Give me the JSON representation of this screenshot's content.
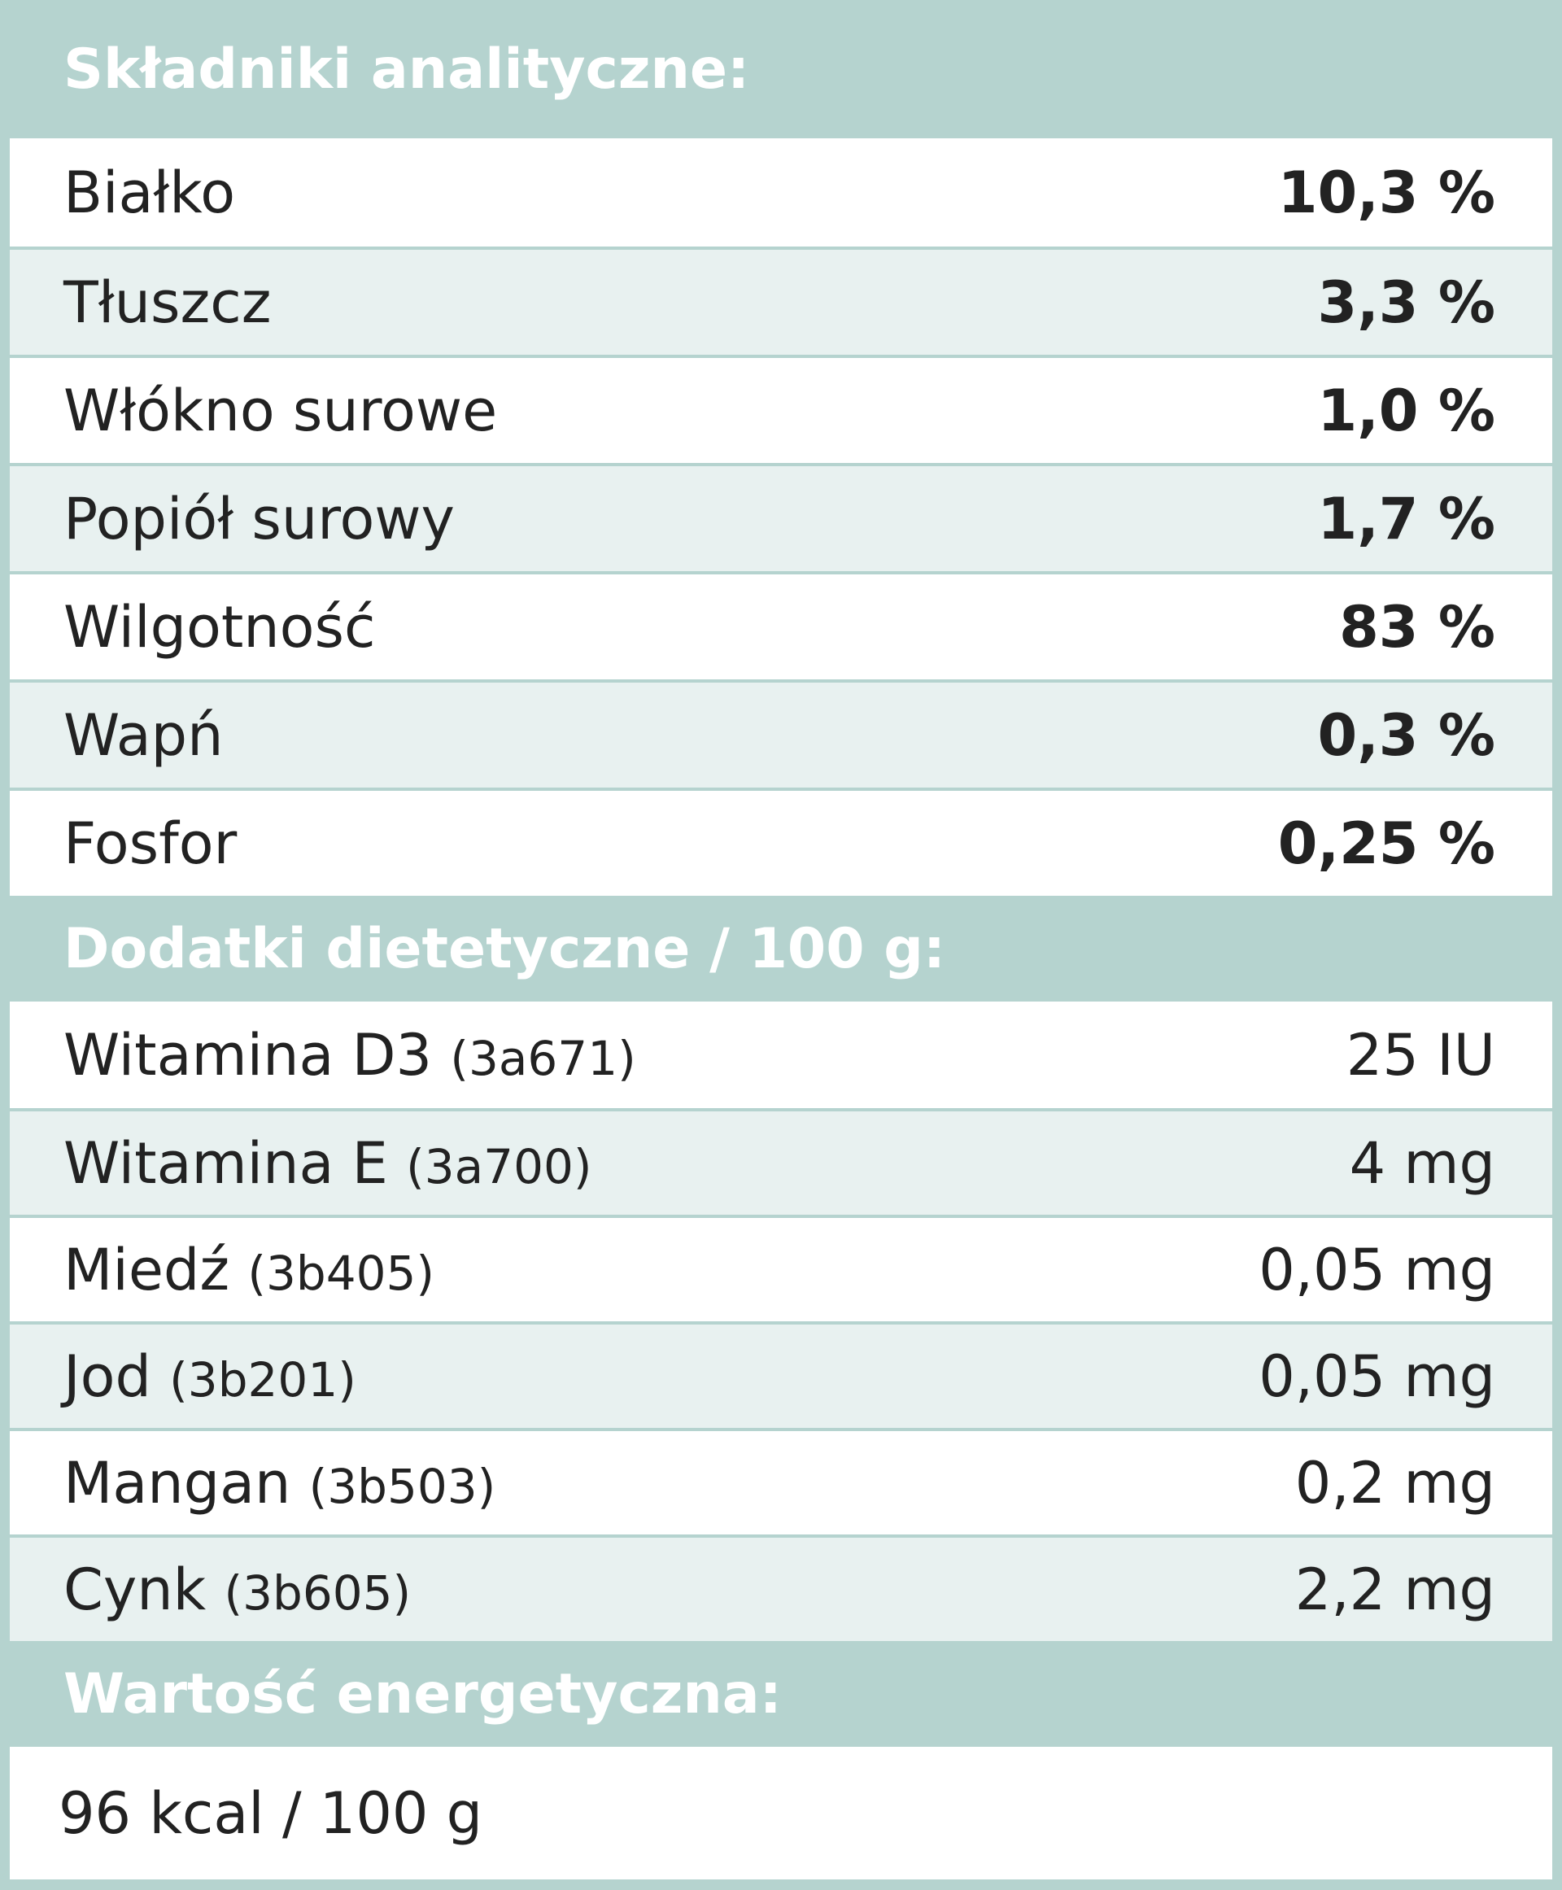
{
  "sections": [
    {
      "title": "Składniki analityczne:",
      "rows": [
        {
          "name": "Białko",
          "value": "10,3 %"
        },
        {
          "name": "Tłuszcz",
          "value": "3,3 %"
        },
        {
          "name": "Włókno surowe",
          "value": "1,0 %"
        },
        {
          "name": "Popiół surowy",
          "value": "1,7 %"
        },
        {
          "name": "Wilgotność",
          "value": "83 %"
        },
        {
          "name": "Wapń",
          "value": "0,3 %"
        },
        {
          "name": "Fosfor",
          "value": "0,25 %"
        }
      ]
    },
    {
      "title": "Dodatki dietetyczne / 100 g:",
      "rows": [
        {
          "name": "Witamina D3",
          "code": "(3a671)",
          "value": "25 IU"
        },
        {
          "name": "Witamina E",
          "code": "(3a700)",
          "value": "4 mg"
        },
        {
          "name": "Miedź",
          "code": "(3b405)",
          "value": "0,05 mg"
        },
        {
          "name": "Jod",
          "code": "(3b201)",
          "value": "0,05 mg"
        },
        {
          "name": "Mangan",
          "code": "(3b503)",
          "value": "0,2 mg"
        },
        {
          "name": "Cynk",
          "code": "(3b605)",
          "value": "2,2 mg"
        }
      ]
    },
    {
      "title": "Wartość energetyczna:",
      "rows": [
        {
          "name": "96  kcal / 100 g"
        }
      ]
    }
  ]
}
